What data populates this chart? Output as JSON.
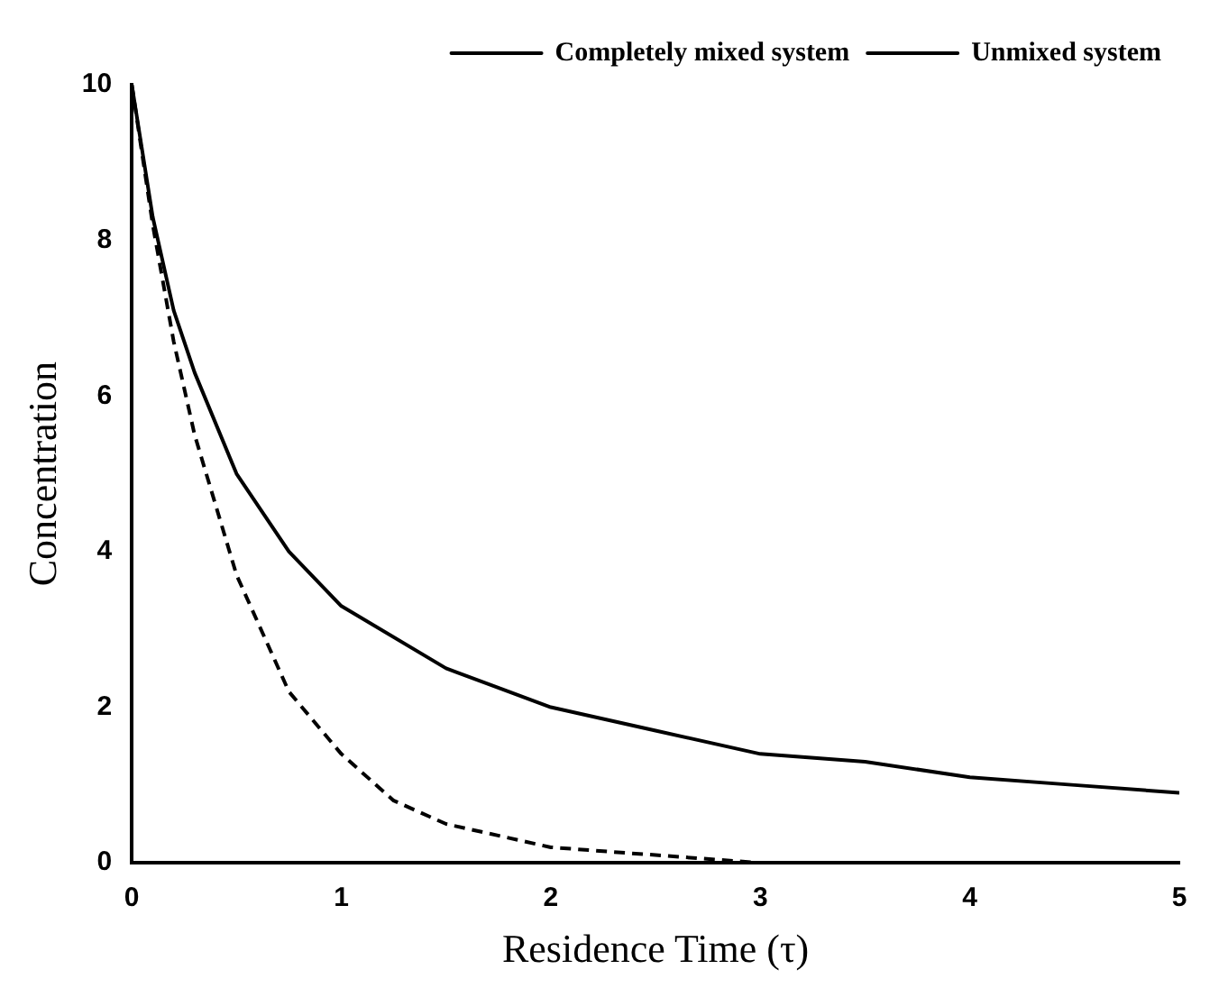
{
  "chart_data": {
    "type": "line",
    "xlabel": "Residence Time (τ)",
    "ylabel": "Concentration",
    "xlim": [
      0,
      5
    ],
    "xticks": [
      0,
      1,
      2,
      3,
      4,
      5
    ],
    "ylim": [
      0,
      10
    ],
    "yticks": [
      0,
      2,
      4,
      6,
      8,
      10
    ],
    "grid": false,
    "legend": "top right",
    "marker": "none",
    "series": [
      {
        "name": "Completely mixed system",
        "color": "#000000",
        "line_style": "solid",
        "x": [
          0,
          0.1,
          0.2,
          0.3,
          0.5,
          0.75,
          1,
          1.5,
          2,
          2.5,
          3,
          3.5,
          4,
          4.5,
          5
        ],
        "values": [
          10,
          8.3,
          7.1,
          6.3,
          5,
          4,
          3.3,
          2.5,
          2,
          1.7,
          1.4,
          1.3,
          1.1,
          1,
          0.9
        ]
      },
      {
        "name": "Unmixed system",
        "color": "#000000",
        "line_style": "dashed",
        "x": [
          0,
          0.1,
          0.2,
          0.3,
          0.5,
          0.75,
          1,
          1.25,
          1.5,
          2,
          2.5,
          3,
          3.25
        ],
        "values": [
          10,
          8.2,
          6.7,
          5.5,
          3.7,
          2.2,
          1.4,
          0.8,
          0.5,
          0.2,
          0.1,
          0,
          0
        ]
      }
    ]
  }
}
